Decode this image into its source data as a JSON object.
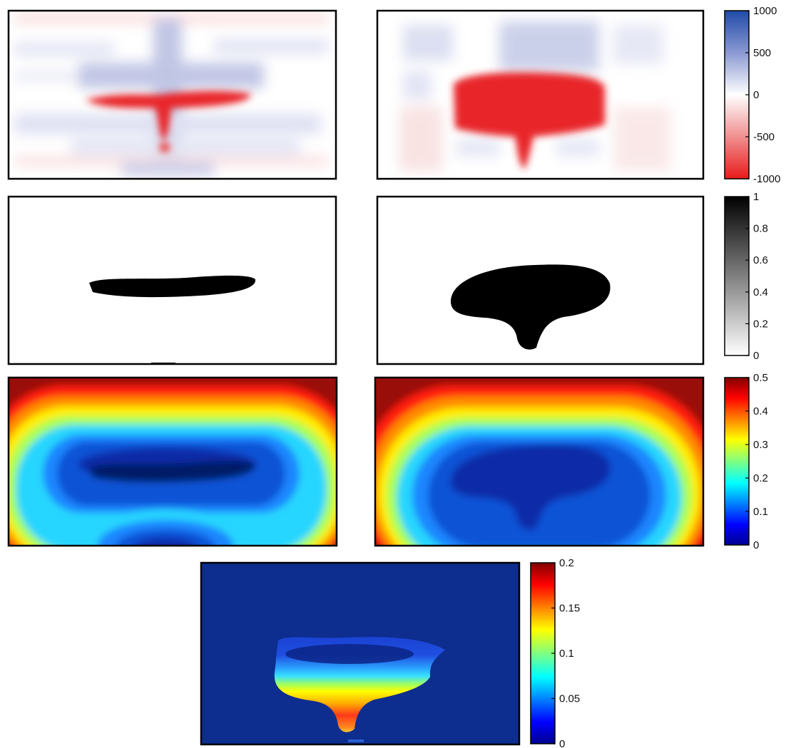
{
  "figure": {
    "rows": [
      {
        "row": "velocity-model-updates",
        "panels": [
          "inversion-update-a",
          "inversion-update-b"
        ],
        "colorbar": {
          "colormap": "red-white-blue",
          "range": [
            -1000,
            1000
          ],
          "ticks": [
            "1000",
            "500",
            "0",
            "-500",
            "-1000"
          ]
        }
      },
      {
        "row": "binary-masks",
        "panels": [
          "binary-mask-a",
          "binary-mask-b"
        ],
        "colorbar": {
          "colormap": "gray",
          "range": [
            0,
            1
          ],
          "ticks": [
            "1",
            "0.8",
            "0.6",
            "0.4",
            "0.2",
            "0"
          ]
        }
      },
      {
        "row": "distance-maps",
        "panels": [
          "distance-map-a",
          "distance-map-b"
        ],
        "colorbar": {
          "colormap": "jet",
          "range": [
            0,
            0.5
          ],
          "ticks": [
            "0.5",
            "0.4",
            "0.3",
            "0.2",
            "0.1",
            "0"
          ]
        }
      },
      {
        "row": "difference-map",
        "panels": [
          "difference-map"
        ],
        "colorbar": {
          "colormap": "jet",
          "range": [
            0,
            0.2
          ],
          "ticks": [
            "0.2",
            "0.15",
            "0.1",
            "0.05",
            "0"
          ]
        }
      }
    ],
    "colors": {
      "red": "#e8262b",
      "blue": "#3a57b5",
      "black": "#000000",
      "jet_dark_blue": "#00008f",
      "jet_dark_red": "#800000"
    }
  }
}
